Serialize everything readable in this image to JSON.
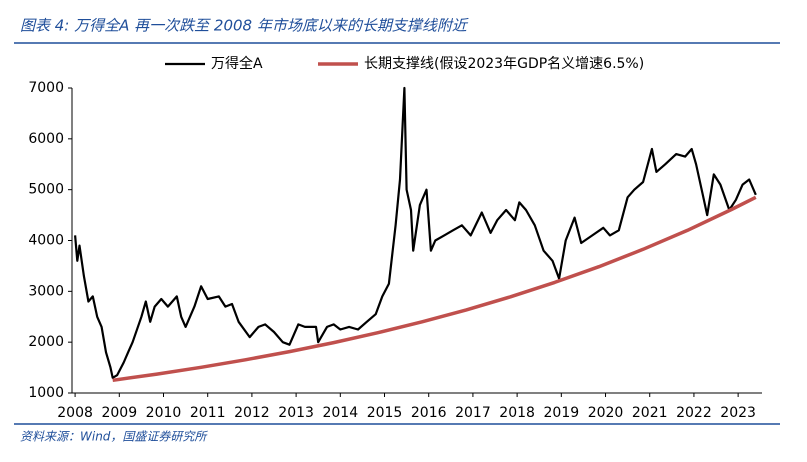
{
  "chart_data": {
    "type": "line",
    "title": "图表 4: 万得全A 再一次跌至 2008 年市场底以来的长期支撑线附近",
    "source": "资料来源：Wind，国盛证券研究所",
    "xlim": [
      2007.93,
      2023.54
    ],
    "ylim": [
      1000,
      7000
    ],
    "xticks": [
      2008,
      2009,
      2010,
      2011,
      2012,
      2013,
      2014,
      2015,
      2016,
      2017,
      2018,
      2019,
      2020,
      2021,
      2022,
      2023
    ],
    "yticks": [
      1000,
      2000,
      3000,
      4000,
      5000,
      6000,
      7000
    ],
    "legend": "top",
    "series": [
      {
        "name": "万得全A",
        "color": "#000000",
        "width": 2.2,
        "x": [
          2008.0,
          2008.05,
          2008.1,
          2008.2,
          2008.3,
          2008.4,
          2008.5,
          2008.6,
          2008.7,
          2008.8,
          2008.85,
          2008.95,
          2009.1,
          2009.2,
          2009.3,
          2009.5,
          2009.6,
          2009.7,
          2009.8,
          2009.95,
          2010.1,
          2010.3,
          2010.4,
          2010.5,
          2010.7,
          2010.85,
          2011.0,
          2011.25,
          2011.4,
          2011.55,
          2011.7,
          2011.95,
          2012.15,
          2012.3,
          2012.5,
          2012.7,
          2012.85,
          2013.05,
          2013.2,
          2013.45,
          2013.5,
          2013.7,
          2013.85,
          2014.0,
          2014.2,
          2014.4,
          2014.6,
          2014.8,
          2014.95,
          2015.1,
          2015.25,
          2015.35,
          2015.45,
          2015.5,
          2015.6,
          2015.65,
          2015.8,
          2015.95,
          2016.05,
          2016.15,
          2016.35,
          2016.55,
          2016.75,
          2016.95,
          2017.2,
          2017.4,
          2017.55,
          2017.75,
          2017.95,
          2018.05,
          2018.2,
          2018.4,
          2018.6,
          2018.8,
          2018.95,
          2019.1,
          2019.3,
          2019.45,
          2019.7,
          2019.95,
          2020.1,
          2020.3,
          2020.5,
          2020.65,
          2020.85,
          2021.05,
          2021.15,
          2021.35,
          2021.6,
          2021.8,
          2021.95,
          2022.05,
          2022.2,
          2022.3,
          2022.45,
          2022.6,
          2022.8,
          2022.95,
          2023.1,
          2023.25,
          2023.4
        ],
        "values": [
          4100,
          3600,
          3900,
          3300,
          2800,
          2900,
          2500,
          2300,
          1800,
          1500,
          1300,
          1350,
          1600,
          1800,
          2000,
          2500,
          2800,
          2400,
          2700,
          2850,
          2700,
          2900,
          2500,
          2300,
          2700,
          3100,
          2850,
          2900,
          2700,
          2750,
          2400,
          2100,
          2300,
          2350,
          2200,
          2000,
          1950,
          2350,
          2300,
          2300,
          2000,
          2300,
          2350,
          2250,
          2300,
          2250,
          2400,
          2550,
          2900,
          3150,
          4300,
          5200,
          7000,
          5000,
          4600,
          3800,
          4700,
          5000,
          3800,
          4000,
          4100,
          4200,
          4300,
          4100,
          4550,
          4150,
          4400,
          4600,
          4400,
          4750,
          4600,
          4300,
          3800,
          3600,
          3250,
          4000,
          4450,
          3950,
          4100,
          4250,
          4100,
          4200,
          4850,
          5000,
          5150,
          5800,
          5350,
          5500,
          5700,
          5650,
          5800,
          5500,
          4900,
          4500,
          5300,
          5100,
          4600,
          4800,
          5100,
          5200,
          4900
        ]
      },
      {
        "name": "长期支撑线(假设2023年GDP名义增速6.5%)",
        "color": "#c0504d",
        "width": 3.5,
        "x": [
          2008.85,
          2009.85,
          2010.85,
          2011.85,
          2012.85,
          2013.85,
          2014.85,
          2015.85,
          2016.85,
          2017.85,
          2018.85,
          2019.85,
          2020.85,
          2021.85,
          2022.85,
          2023.4
        ],
        "values": [
          1250,
          1372,
          1506,
          1653,
          1815,
          1992,
          2187,
          2400,
          2635,
          2892,
          3175,
          3485,
          3826,
          4199,
          4610,
          4850
        ]
      }
    ]
  }
}
